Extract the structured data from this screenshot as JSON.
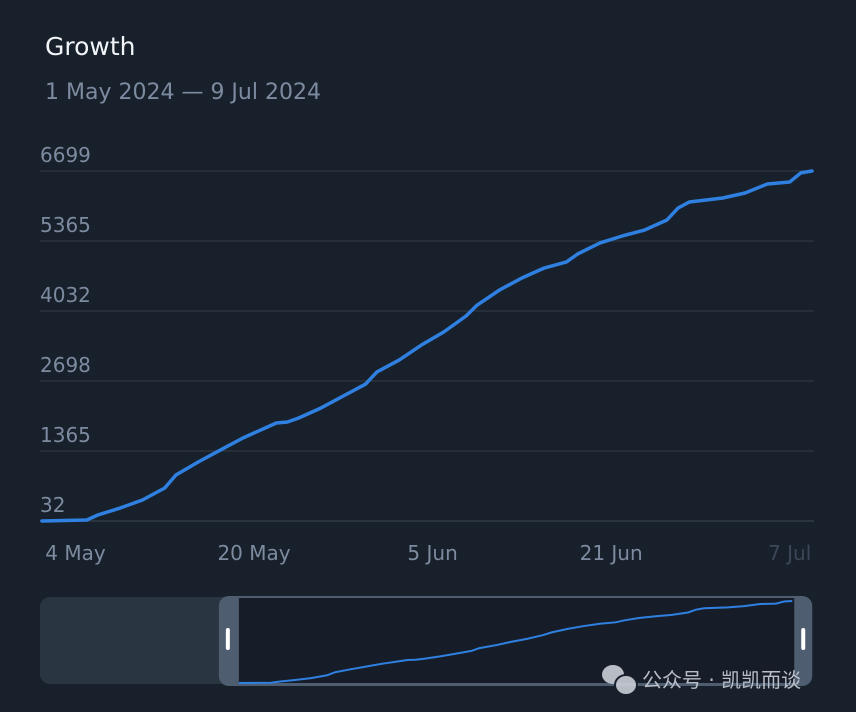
{
  "title": "Growth",
  "subtitle": "1 May 2024 — 9 Jul 2024",
  "colors": {
    "background": "#18202b",
    "line": "#2f80e0",
    "grid": "#2a3340",
    "label": "#7d8ba0",
    "navigator_mask": "#2a3542",
    "navigator_handle": "#4f5d70"
  },
  "watermark": {
    "icon": "wechat-icon",
    "text": "公众号 · 凯凯而谈"
  },
  "chart_data": {
    "type": "line",
    "title": "Growth",
    "x_range": [
      "2024-05-01",
      "2024-07-09"
    ],
    "ylim": [
      32,
      6699
    ],
    "y_ticks": [
      32,
      1365,
      2698,
      4032,
      5365,
      6699
    ],
    "x_ticks": [
      {
        "date": "2024-05-04",
        "label": "4 May"
      },
      {
        "date": "2024-05-20",
        "label": "20 May"
      },
      {
        "date": "2024-06-05",
        "label": "5 Jun"
      },
      {
        "date": "2024-06-21",
        "label": "21 Jun"
      },
      {
        "date": "2024-07-07",
        "label": "7 Jul"
      }
    ],
    "grid": true,
    "series": [
      {
        "points": [
          [
            "2024-05-01",
            32
          ],
          [
            "2024-05-05",
            50
          ],
          [
            "2024-05-06",
            146
          ],
          [
            "2024-05-08",
            279
          ],
          [
            "2024-05-10",
            432
          ],
          [
            "2024-05-12",
            661
          ],
          [
            "2024-05-13",
            908
          ],
          [
            "2024-05-15",
            1156
          ],
          [
            "2024-05-17",
            1385
          ],
          [
            "2024-05-19",
            1613
          ],
          [
            "2024-05-21",
            1804
          ],
          [
            "2024-05-22",
            1899
          ],
          [
            "2024-05-23",
            1918
          ],
          [
            "2024-05-24",
            1994
          ],
          [
            "2024-05-26",
            2185
          ],
          [
            "2024-05-28",
            2413
          ],
          [
            "2024-05-30",
            2641
          ],
          [
            "2024-05-31",
            2870
          ],
          [
            "2024-06-02",
            3098
          ],
          [
            "2024-06-04",
            3384
          ],
          [
            "2024-06-06",
            3632
          ],
          [
            "2024-06-08",
            3937
          ],
          [
            "2024-06-09",
            4146
          ],
          [
            "2024-06-11",
            4432
          ],
          [
            "2024-06-13",
            4661
          ],
          [
            "2024-06-15",
            4851
          ],
          [
            "2024-06-17",
            4966
          ],
          [
            "2024-06-18",
            5118
          ],
          [
            "2024-06-20",
            5328
          ],
          [
            "2024-06-22",
            5461
          ],
          [
            "2024-06-24",
            5575
          ],
          [
            "2024-06-26",
            5766
          ],
          [
            "2024-06-27",
            5994
          ],
          [
            "2024-06-28",
            6108
          ],
          [
            "2024-07-01",
            6185
          ],
          [
            "2024-07-03",
            6280
          ],
          [
            "2024-07-05",
            6451
          ],
          [
            "2024-07-07",
            6490
          ],
          [
            "2024-07-08",
            6663
          ],
          [
            "2024-07-09",
            6699
          ]
        ]
      }
    ],
    "navigator": {
      "selected_fraction": [
        0.255,
        0.977
      ]
    }
  }
}
